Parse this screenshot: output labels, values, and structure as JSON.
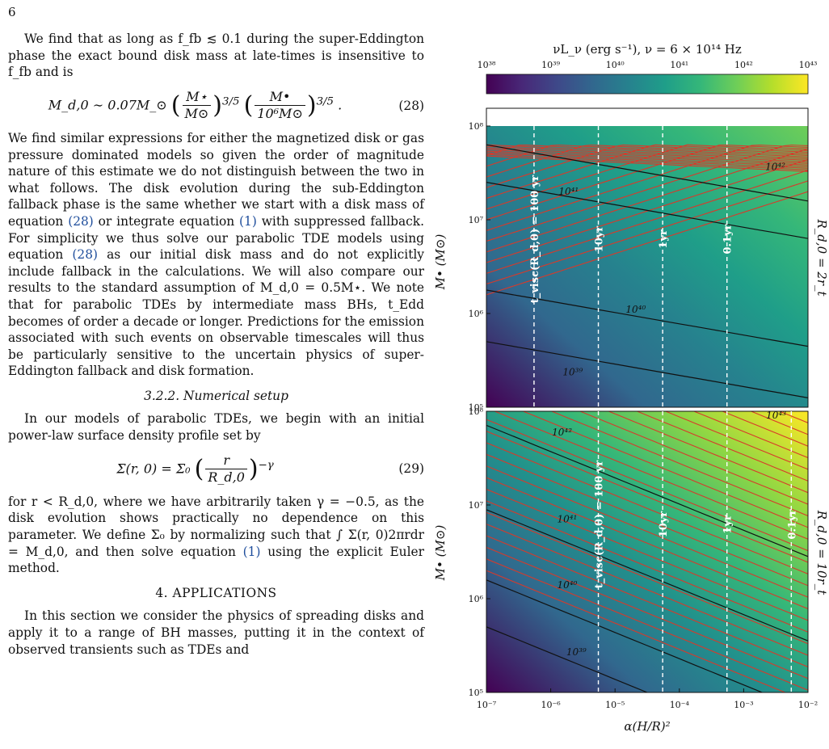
{
  "page_number": "6",
  "text": {
    "para1": "We find that as long as f_fb ≲ 0.1 during the super-Eddington phase the exact bound disk mass at late-times is insensitive to f_fb and is",
    "eq28_lhs": "M_d,0 ∼ 0.07M_⊙",
    "eq28_frac1_num": "M⋆",
    "eq28_frac1_den": "M⊙",
    "eq28_frac2_num": "M•",
    "eq28_frac2_den": "10⁶M⊙",
    "eq28_exp": "3/5",
    "eq28_num": "(28)",
    "para2a": "We find similar expressions for either the magnetized disk or gas pressure dominated models so given the order of magnitude nature of this estimate we do not distinguish between the two in what follows. The disk evolution during the sub-Eddington fallback phase is the same whether we start with a disk mass of equation ",
    "para2_ref1": "(28)",
    "para2b": " or integrate equation ",
    "para2_ref2": "(1)",
    "para2c": " with suppressed fallback. For simplicity we thus solve our parabolic TDE models using equation ",
    "para2_ref3": "(28)",
    "para2d": " as our initial disk mass and do not explicitly include fallback in the calculations. We will also compare our results to the standard assumption of M_d,0 = 0.5M⋆. We note that for parabolic TDEs by intermediate mass BHs, t_Edd becomes of order a decade or longer. Predictions for the emission associated with such events on observable timescales will thus be particularly sensitive to the uncertain physics of super-Eddington fallback and disk formation.",
    "heading_322": "3.2.2. Numerical setup",
    "para3": "In our models of parabolic TDEs, we begin with an initial power-law surface density profile set by",
    "eq29_lhs": "Σ(r, 0) = Σ₀",
    "eq29_num_frac": "r",
    "eq29_den_frac": "R_d,0",
    "eq29_exp": "−γ",
    "eq29_num": "(29)",
    "para4a": "for r < R_d,0, where we have arbitrarily taken γ = −0.5, as the disk evolution shows practically no dependence on this parameter. We define Σ₀ by normalizing such that ∫ Σ(r, 0)2πrdr = M_d,0, and then solve equation ",
    "para4_ref": "(1)",
    "para4b": " using the explicit Euler method.",
    "heading_4": "4. APPLICATIONS",
    "para5": "In this section we consider the physics of spreading disks and apply it to a range of BH masses, putting it in the context of observed transients such as TDEs and"
  },
  "colorbar": {
    "label": "νL_ν (erg s⁻¹), ν = 6 × 10¹⁴ Hz",
    "ticks": [
      "10³⁸",
      "10³⁹",
      "10⁴⁰",
      "10⁴¹",
      "10⁴²",
      "10⁴³"
    ],
    "colors": [
      "#440154",
      "#482878",
      "#3e4989",
      "#31688e",
      "#26828e",
      "#1f9e89",
      "#35b779",
      "#6ece58",
      "#b5de2b",
      "#fde725"
    ]
  },
  "chart_data": [
    {
      "type": "heatmap",
      "panel": "top",
      "xlabel": "",
      "ylabel": "M• (M⊙)",
      "right_label": "R_d,0 = 2r_t",
      "xscale": "log",
      "yscale": "log",
      "xlim": [
        1e-07,
        0.01
      ],
      "ylim": [
        100000.0,
        100000000.0
      ],
      "yticks": [
        "10⁵",
        "10⁶",
        "10⁷",
        "10⁸"
      ],
      "contour_labels": [
        {
          "text": "10³⁹",
          "x": 2.2e-06,
          "y": 220000.0
        },
        {
          "text": "10⁴⁰",
          "x": 2.1e-05,
          "y": 1020000.0
        },
        {
          "text": "10⁴¹",
          "x": 1.9e-06,
          "y": 18500000.0
        },
        {
          "text": "10⁴²",
          "x": 0.0031,
          "y": 34000000.0
        }
      ],
      "timescales": [
        {
          "label": "t_visc(R_d,0) = 100 yr",
          "x": 5.5e-07
        },
        {
          "label": "10yr",
          "x": 5.5e-06
        },
        {
          "label": "1yr",
          "x": 5.5e-05
        },
        {
          "label": "0.1yr",
          "x": 0.00055
        }
      ],
      "note": "white region above M• ≈ 6.5×10⁷ M⊙; red curves turn over at top"
    },
    {
      "type": "heatmap",
      "panel": "bottom",
      "xlabel": "α(H/R)²",
      "ylabel": "M• (M⊙)",
      "right_label": "R_d,0 = 10r_t",
      "xscale": "log",
      "yscale": "log",
      "xlim": [
        1e-07,
        0.01
      ],
      "ylim": [
        100000.0,
        100000000.0
      ],
      "xticks": [
        "10⁻⁷",
        "10⁻⁶",
        "10⁻⁵",
        "10⁻⁴",
        "10⁻³",
        "10⁻²"
      ],
      "yticks": [
        "10⁵",
        "10⁶",
        "10⁷",
        "10⁸"
      ],
      "contour_labels": [
        {
          "text": "10³⁹",
          "x": 2.5e-06,
          "y": 250000.0
        },
        {
          "text": "10⁴⁰",
          "x": 1.8e-06,
          "y": 1300000.0
        },
        {
          "text": "10⁴¹",
          "x": 1.8e-06,
          "y": 6500000.0
        },
        {
          "text": "10⁴²",
          "x": 1.5e-06,
          "y": 55000000.0
        },
        {
          "text": "10⁴³",
          "x": 0.0032,
          "y": 84000000.0
        }
      ],
      "timescales": [
        {
          "label": "t_visc(R_d,0) = 100 yr",
          "x": 5.5e-06
        },
        {
          "label": "10yr",
          "x": 5.5e-05
        },
        {
          "label": "1yr",
          "x": 0.00055
        },
        {
          "label": "0.1yr",
          "x": 0.0055
        }
      ]
    }
  ]
}
